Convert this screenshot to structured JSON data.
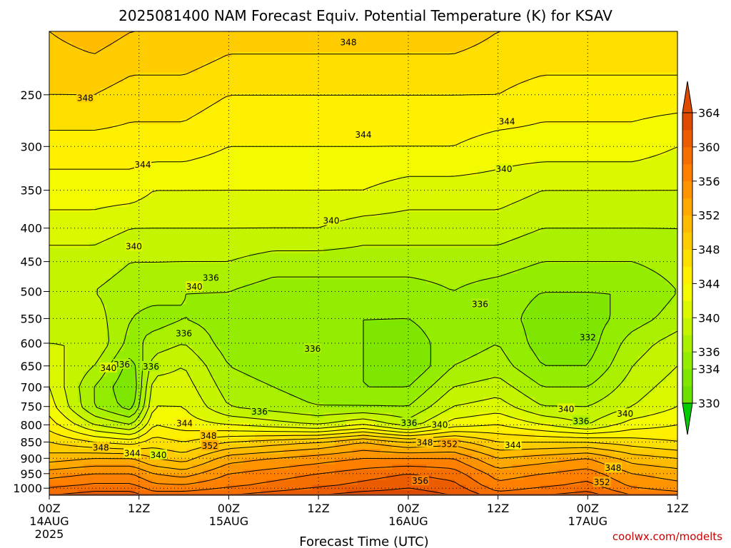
{
  "title": "2025081400 NAM Forecast Equiv. Potential Temperature (K) for KSAV",
  "xlabel": "Forecast Time (UTC)",
  "credit": "coolwx.com/modelts",
  "chart_data": {
    "type": "heatmap",
    "title": "2025081400 NAM Forecast Equiv. Potential Temperature (K) for KSAV",
    "xlabel": "Forecast Time (UTC)",
    "ylabel": "",
    "x_range_hours": [
      0,
      84
    ],
    "y_range_hpa": [
      200,
      1025
    ],
    "y_scale": "log",
    "y_inverted": true,
    "x_ticks": [
      {
        "h": 0,
        "label": "00Z",
        "sub": "14AUG",
        "sub2": "2025"
      },
      {
        "h": 12,
        "label": "12Z",
        "sub": "",
        "sub2": ""
      },
      {
        "h": 24,
        "label": "00Z",
        "sub": "15AUG",
        "sub2": ""
      },
      {
        "h": 36,
        "label": "12Z",
        "sub": "",
        "sub2": ""
      },
      {
        "h": 48,
        "label": "00Z",
        "sub": "16AUG",
        "sub2": ""
      },
      {
        "h": 60,
        "label": "12Z",
        "sub": "",
        "sub2": ""
      },
      {
        "h": 72,
        "label": "00Z",
        "sub": "17AUG",
        "sub2": ""
      },
      {
        "h": 84,
        "label": "12Z",
        "sub": "",
        "sub2": ""
      }
    ],
    "y_ticks": [
      250,
      300,
      350,
      400,
      450,
      500,
      550,
      600,
      650,
      700,
      750,
      800,
      850,
      900,
      950,
      1000
    ],
    "colorbar": {
      "levels": [
        330,
        332,
        334,
        336,
        338,
        340,
        342,
        344,
        346,
        348,
        350,
        352,
        354,
        356,
        358,
        360,
        362,
        364
      ],
      "labels": [
        330,
        334,
        336,
        340,
        344,
        348,
        352,
        356,
        360,
        364
      ],
      "colors": [
        "#6ee000",
        "#7ee600",
        "#94ec00",
        "#aaf000",
        "#c4f400",
        "#dcf800",
        "#f4fa00",
        "#fff000",
        "#ffdf00",
        "#ffcc00",
        "#ffbb00",
        "#ffa800",
        "#ff9400",
        "#ff8000",
        "#f56e00",
        "#eb5c00",
        "#dd4a00"
      ]
    },
    "profile_pressures": [
      200,
      250,
      300,
      350,
      400,
      450,
      500,
      550,
      600,
      650,
      700,
      750,
      800,
      850,
      900,
      950,
      1000,
      1020
    ],
    "profiles": [
      {
        "h": 0,
        "theta_e": [
          350,
          348,
          345,
          343,
          341,
          339,
          338,
          339,
          340,
          341,
          342,
          343,
          345,
          348,
          351,
          355,
          358,
          360
        ]
      },
      {
        "h": 6,
        "theta_e": [
          351,
          348,
          345,
          343,
          341,
          339,
          338,
          339,
          340,
          338,
          336,
          336,
          340,
          346,
          352,
          356,
          359,
          361
        ]
      },
      {
        "h": 11,
        "theta_e": [
          350,
          347,
          345,
          343,
          340,
          338,
          337,
          336,
          335,
          333,
          332,
          333,
          338,
          345,
          352,
          356,
          359,
          361
        ]
      },
      {
        "h": 14,
        "theta_e": [
          350,
          347,
          345,
          342,
          340,
          338,
          337,
          335,
          337,
          339,
          341,
          342,
          344,
          347,
          350,
          354,
          357,
          359
        ]
      },
      {
        "h": 18,
        "theta_e": [
          350,
          347,
          345,
          342,
          340,
          338,
          336,
          336,
          338,
          340,
          341,
          342,
          343,
          346,
          349,
          353,
          357,
          359
        ]
      },
      {
        "h": 24,
        "theta_e": [
          349,
          346,
          344,
          342,
          340,
          338,
          336,
          335,
          335,
          336,
          337,
          338,
          342,
          348,
          353,
          356,
          358,
          360
        ]
      },
      {
        "h": 30,
        "theta_e": [
          349,
          346,
          344,
          342,
          340,
          337,
          335,
          334,
          334,
          335,
          336,
          337,
          341,
          349,
          354,
          357,
          359,
          361
        ]
      },
      {
        "h": 36,
        "theta_e": [
          349,
          346,
          344,
          342,
          340,
          337,
          335,
          334,
          334,
          335,
          335,
          336,
          340,
          350,
          355,
          358,
          360,
          362
        ]
      },
      {
        "h": 42,
        "theta_e": [
          349,
          346,
          344,
          342,
          339,
          337,
          335,
          334,
          334,
          334,
          334,
          336,
          342,
          352,
          356,
          359,
          361,
          363
        ]
      },
      {
        "h": 48,
        "theta_e": [
          349,
          346,
          344,
          341,
          339,
          337,
          335,
          334,
          333,
          332,
          334,
          336,
          339,
          350,
          356,
          360,
          362,
          363
        ]
      },
      {
        "h": 54,
        "theta_e": [
          349,
          346,
          344,
          341,
          339,
          337,
          336,
          335,
          335,
          336,
          338,
          340,
          343,
          351,
          356,
          359,
          361,
          362
        ]
      },
      {
        "h": 60,
        "theta_e": [
          348,
          346,
          343,
          341,
          339,
          337,
          335,
          335,
          336,
          337,
          339,
          341,
          344,
          348,
          352,
          355,
          357,
          359
        ]
      },
      {
        "h": 66,
        "theta_e": [
          348,
          345,
          343,
          340,
          338,
          336,
          334,
          333,
          333,
          334,
          336,
          338,
          342,
          348,
          353,
          356,
          358,
          360
        ]
      },
      {
        "h": 72,
        "theta_e": [
          348,
          345,
          343,
          340,
          338,
          336,
          334,
          333,
          333,
          334,
          336,
          338,
          340,
          348,
          354,
          357,
          359,
          361
        ]
      },
      {
        "h": 78,
        "theta_e": [
          348,
          345,
          343,
          340,
          338,
          336,
          334,
          335,
          337,
          338,
          339,
          340,
          343,
          347,
          351,
          354,
          356,
          358
        ]
      },
      {
        "h": 84,
        "theta_e": [
          348,
          345,
          342,
          340,
          338,
          337,
          336,
          337,
          339,
          340,
          341,
          342,
          344,
          346,
          350,
          353,
          355,
          357
        ]
      }
    ],
    "contour_labels": [
      {
        "text": "348",
        "h": 40.0,
        "p": 208
      },
      {
        "text": "348",
        "h": 4.8,
        "p": 253
      },
      {
        "text": "344",
        "h": 61.2,
        "p": 275
      },
      {
        "text": "344",
        "h": 42.0,
        "p": 288
      },
      {
        "text": "344",
        "h": 12.5,
        "p": 320
      },
      {
        "text": "340",
        "h": 60.8,
        "p": 325
      },
      {
        "text": "340",
        "h": 37.7,
        "p": 390
      },
      {
        "text": "340",
        "h": 11.3,
        "p": 427
      },
      {
        "text": "336",
        "h": 21.6,
        "p": 477
      },
      {
        "text": "340",
        "h": 19.4,
        "p": 492
      },
      {
        "text": "336",
        "h": 57.6,
        "p": 523
      },
      {
        "text": "336",
        "h": 18.0,
        "p": 580
      },
      {
        "text": "332",
        "h": 72.0,
        "p": 588
      },
      {
        "text": "336",
        "h": 35.2,
        "p": 612
      },
      {
        "text": "336",
        "h": 9.7,
        "p": 647
      },
      {
        "text": "340",
        "h": 7.9,
        "p": 655
      },
      {
        "text": "336",
        "h": 13.6,
        "p": 652
      },
      {
        "text": "336",
        "h": 28.1,
        "p": 764
      },
      {
        "text": "340",
        "h": 69.1,
        "p": 757
      },
      {
        "text": "340",
        "h": 77.0,
        "p": 770
      },
      {
        "text": "336",
        "h": 48.1,
        "p": 795
      },
      {
        "text": "340",
        "h": 52.2,
        "p": 800
      },
      {
        "text": "336",
        "h": 71.1,
        "p": 790
      },
      {
        "text": "344",
        "h": 18.1,
        "p": 796
      },
      {
        "text": "348",
        "h": 21.3,
        "p": 832
      },
      {
        "text": "348",
        "h": 6.9,
        "p": 867
      },
      {
        "text": "352",
        "h": 21.5,
        "p": 862
      },
      {
        "text": "348",
        "h": 50.2,
        "p": 852
      },
      {
        "text": "352",
        "h": 53.5,
        "p": 856
      },
      {
        "text": "344",
        "h": 62.0,
        "p": 860
      },
      {
        "text": "344",
        "h": 11.1,
        "p": 885
      },
      {
        "text": "340",
        "h": 14.6,
        "p": 890
      },
      {
        "text": "348",
        "h": 75.4,
        "p": 932
      },
      {
        "text": "356",
        "h": 49.6,
        "p": 975
      },
      {
        "text": "352",
        "h": 73.9,
        "p": 980
      }
    ]
  }
}
